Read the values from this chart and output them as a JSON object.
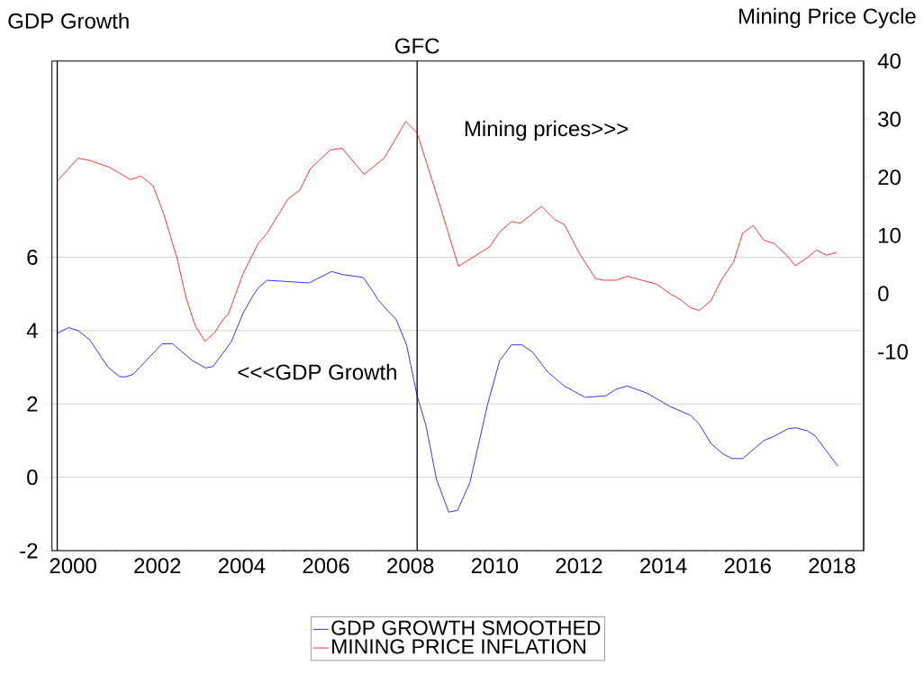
{
  "chart_data": {
    "type": "line",
    "xlabel": null,
    "ylabel": "GDP Growth",
    "y2label": "Mining Price Cycle",
    "xlim": [
      2000,
      2019.25
    ],
    "ylim": [
      -2,
      11.35
    ],
    "y2lim": [
      -44.2,
      40
    ],
    "xticks": [
      {
        "value": 2000,
        "label": null
      },
      {
        "value": 2001,
        "label": null
      },
      {
        "value": 2002,
        "label": null
      },
      {
        "value": 2003,
        "label": null
      },
      {
        "value": 2004,
        "label": null
      },
      {
        "value": 2005,
        "label": null
      },
      {
        "value": 2006,
        "label": null
      },
      {
        "value": 2007,
        "label": null
      },
      {
        "value": 2008,
        "label": null
      },
      {
        "value": 2009,
        "label": null
      },
      {
        "value": 2010,
        "label": null
      },
      {
        "value": 2011,
        "label": null
      },
      {
        "value": 2012,
        "label": null
      },
      {
        "value": 2013,
        "label": null
      },
      {
        "value": 2014,
        "label": null
      },
      {
        "value": 2015,
        "label": null
      },
      {
        "value": 2016,
        "label": null
      },
      {
        "value": 2017,
        "label": null
      },
      {
        "value": 2018,
        "label": null
      },
      {
        "value": 2019,
        "label": null
      },
      {
        "value": 2000.5,
        "label": "2000"
      },
      {
        "value": 2002.5,
        "label": "2002"
      },
      {
        "value": 2004.5,
        "label": "2004"
      },
      {
        "value": 2006.5,
        "label": "2006"
      },
      {
        "value": 2008.5,
        "label": "2008"
      },
      {
        "value": 2010.5,
        "label": "2010"
      },
      {
        "value": 2012.5,
        "label": "2012"
      },
      {
        "value": 2014.5,
        "label": "2014"
      },
      {
        "value": 2016.5,
        "label": "2016"
      },
      {
        "value": 2018.5,
        "label": "2018"
      }
    ],
    "yticks": [
      -2,
      0,
      2,
      4,
      6
    ],
    "y2ticks": [
      -10,
      0,
      10,
      20,
      30,
      40
    ],
    "grid": "y",
    "legend": "bottom",
    "ref_lines": [
      {
        "axis": "x",
        "value": 2000.125,
        "label": null,
        "color": "#000000"
      },
      {
        "axis": "x",
        "value": 2008.66,
        "label": "GFC",
        "color": "#000000"
      }
    ],
    "annotations": [
      "Mining prices>>>",
      "<<<GDP Growth"
    ],
    "series": [
      {
        "name": "GDP GROWTH SMOOTHED",
        "color": "#0000ff",
        "axis": "y",
        "x": [
          2000.12,
          2000.39,
          2000.62,
          2000.9,
          2001.33,
          2001.61,
          2001.76,
          2001.93,
          2002.61,
          2002.86,
          2003.32,
          2003.64,
          2003.82,
          2004.25,
          2004.53,
          2004.75,
          2004.89,
          2005.1,
          2006.1,
          2006.63,
          2006.88,
          2007.38,
          2007.63,
          2007.73,
          2008.02,
          2008.16,
          2008.41,
          2008.66,
          2008.87,
          2009.12,
          2009.41,
          2009.62,
          2009.91,
          2010.33,
          2010.62,
          2010.9,
          2011.15,
          2011.4,
          2011.75,
          2012.15,
          2012.64,
          2013.14,
          2013.36,
          2013.64,
          2014.1,
          2014.64,
          2015.14,
          2015.35,
          2015.63,
          2015.92,
          2016.13,
          2016.38,
          2016.88,
          2017.13,
          2017.45,
          2017.63,
          2017.91,
          2018.09,
          2018.64
        ],
        "values": [
          3.92,
          4.08,
          4.0,
          3.74,
          3.0,
          2.74,
          2.74,
          2.81,
          3.64,
          3.64,
          3.19,
          2.98,
          3.02,
          3.69,
          4.47,
          4.92,
          5.16,
          5.37,
          5.3,
          5.61,
          5.53,
          5.45,
          5.04,
          4.84,
          4.47,
          4.31,
          3.61,
          2.22,
          1.41,
          -0.06,
          -0.95,
          -0.9,
          -0.15,
          1.98,
          3.19,
          3.61,
          3.61,
          3.41,
          2.88,
          2.49,
          2.18,
          2.22,
          2.39,
          2.49,
          2.3,
          1.94,
          1.69,
          1.45,
          0.92,
          0.63,
          0.51,
          0.51,
          1.0,
          1.12,
          1.32,
          1.35,
          1.27,
          1.14,
          0.3
        ]
      },
      {
        "name": "MINING PRICE INFLATION",
        "color": "#ff0000",
        "axis": "y2",
        "x": [
          2000.12,
          2000.62,
          2000.9,
          2001.37,
          2001.86,
          2002.11,
          2002.4,
          2002.65,
          2002.97,
          2003.18,
          2003.4,
          2003.63,
          2003.86,
          2004.07,
          2004.18,
          2004.53,
          2004.89,
          2005.1,
          2005.6,
          2005.88,
          2006.13,
          2006.6,
          2006.88,
          2007.4,
          2007.88,
          2008.39,
          2008.66,
          2009.09,
          2009.64,
          2010.37,
          2010.62,
          2010.9,
          2011.11,
          2011.61,
          2011.93,
          2012.15,
          2012.5,
          2012.89,
          2013.07,
          2013.39,
          2013.64,
          2013.99,
          2014.35,
          2014.67,
          2014.92,
          2015.14,
          2015.35,
          2015.63,
          2015.88,
          2016.17,
          2016.38,
          2016.63,
          2016.88,
          2017.13,
          2017.41,
          2017.63,
          2017.88,
          2018.13,
          2018.37,
          2018.61
        ],
        "values": [
          19.3,
          23.3,
          22.9,
          21.7,
          19.6,
          20.2,
          18.5,
          13.7,
          6.0,
          -0.7,
          -5.6,
          -8.2,
          -6.7,
          -4.3,
          -3.6,
          3.4,
          8.6,
          10.4,
          16.3,
          17.8,
          21.5,
          24.7,
          25.0,
          20.5,
          23.3,
          29.6,
          27.6,
          17.8,
          4.7,
          8.0,
          10.6,
          12.4,
          12.1,
          15.0,
          12.7,
          11.9,
          7.0,
          2.6,
          2.3,
          2.3,
          3.0,
          2.3,
          1.6,
          -0.1,
          -1.1,
          -2.4,
          -2.9,
          -1.2,
          2.4,
          5.5,
          10.4,
          11.7,
          9.2,
          8.6,
          6.7,
          4.8,
          6.0,
          7.5,
          6.6,
          7.1
        ]
      }
    ]
  }
}
